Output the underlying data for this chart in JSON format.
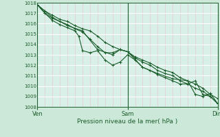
{
  "title": "",
  "xlabel": "Pression niveau de la mer( hPa )",
  "ylabel": "",
  "ylim": [
    1008,
    1018
  ],
  "yticks": [
    1008,
    1009,
    1010,
    1011,
    1012,
    1013,
    1014,
    1015,
    1016,
    1017,
    1018
  ],
  "xlim": [
    0,
    48
  ],
  "xtick_positions": [
    0,
    24,
    48
  ],
  "xtick_labels": [
    "Ven",
    "Sam",
    "Dim"
  ],
  "bg_color": "#cce8d8",
  "plot_bg_color": "#d8f0e8",
  "line_color": "#1a5c2a",
  "grid_major_color": "#ffffff",
  "grid_minor_color": "#e8c8cc",
  "line1_x": [
    0,
    2,
    4,
    6,
    8,
    10,
    12,
    14,
    16,
    18,
    20,
    22,
    24,
    26,
    28,
    30,
    32,
    34,
    36,
    38,
    40,
    42,
    44,
    46,
    48
  ],
  "line1_y": [
    1017.8,
    1017.2,
    1016.8,
    1016.4,
    1016.2,
    1015.8,
    1015.5,
    1015.3,
    1014.8,
    1014.2,
    1013.8,
    1013.5,
    1013.3,
    1012.8,
    1012.5,
    1012.2,
    1011.8,
    1011.5,
    1011.3,
    1010.8,
    1010.5,
    1010.2,
    1009.8,
    1009.2,
    1008.8
  ],
  "line2_x": [
    0,
    2,
    4,
    6,
    8,
    10,
    12,
    14,
    16,
    18,
    20,
    22,
    24,
    26,
    28,
    30,
    32,
    34,
    36,
    38,
    40,
    42,
    44,
    46,
    48
  ],
  "line2_y": [
    1017.8,
    1017.0,
    1016.5,
    1016.2,
    1015.9,
    1015.5,
    1015.2,
    1014.5,
    1013.8,
    1013.2,
    1013.2,
    1013.5,
    1013.3,
    1012.7,
    1012.3,
    1012.0,
    1011.5,
    1011.2,
    1011.0,
    1010.5,
    1010.2,
    1009.8,
    1009.5,
    1009.0,
    1008.3
  ],
  "line3_x": [
    0,
    2,
    4,
    6,
    8,
    10,
    11,
    12,
    14,
    16,
    18,
    20,
    22,
    24,
    26,
    28,
    30,
    32,
    34,
    36,
    38,
    40,
    42,
    44,
    46,
    48
  ],
  "line3_y": [
    1017.8,
    1017.0,
    1016.3,
    1015.9,
    1015.6,
    1015.3,
    1014.8,
    1013.4,
    1013.2,
    1013.4,
    1012.5,
    1012.0,
    1012.3,
    1013.0,
    1012.5,
    1011.8,
    1011.5,
    1011.1,
    1010.8,
    1010.5,
    1010.2,
    1010.2,
    1010.5,
    1009.2,
    1009.0,
    1008.3
  ],
  "line4_x": [
    0,
    4,
    8,
    12,
    16,
    20,
    22,
    24,
    28,
    32,
    36,
    40,
    42,
    44,
    46,
    48
  ],
  "line4_y": [
    1017.8,
    1016.6,
    1015.8,
    1015.3,
    1013.5,
    1013.0,
    1013.5,
    1013.3,
    1011.8,
    1011.2,
    1010.7,
    1010.5,
    1009.2,
    1009.0,
    1009.3,
    1008.3
  ]
}
